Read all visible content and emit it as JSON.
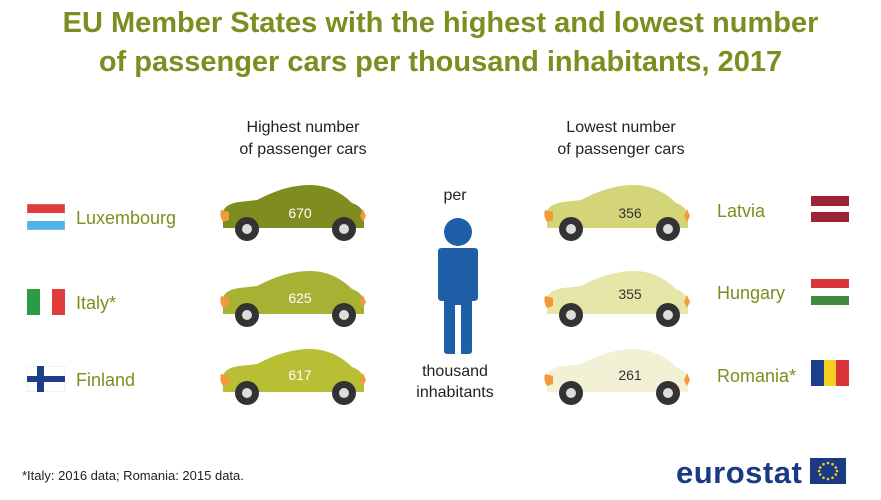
{
  "title": {
    "line1": "EU Member States with the highest and lowest number",
    "line2": "of passenger cars per thousand inhabitants, 2017"
  },
  "highest": {
    "header_line1": "Highest number",
    "header_line2": "of passenger cars",
    "rows": [
      {
        "country": "Luxembourg",
        "value": "670",
        "car_color": "#7f8c1f",
        "flag": "luxembourg"
      },
      {
        "country": "Italy*",
        "value": "625",
        "car_color": "#a7b234",
        "flag": "italy"
      },
      {
        "country": "Finland",
        "value": "617",
        "car_color": "#b8bf35",
        "flag": "finland"
      }
    ]
  },
  "lowest": {
    "header_line1": "Lowest number",
    "header_line2": "of passenger cars",
    "rows": [
      {
        "country": "Latvia",
        "value": "356",
        "car_color": "#d4d478",
        "flag": "latvia"
      },
      {
        "country": "Hungary",
        "value": "355",
        "car_color": "#e6e6a8",
        "flag": "hungary"
      },
      {
        "country": "Romania*",
        "value": "261",
        "car_color": "#f2f1d6",
        "flag": "romania"
      }
    ]
  },
  "center": {
    "per": "per",
    "thousand": "thousand",
    "inhabitants": "inhabitants",
    "person_icon": "person-icon",
    "person_color": "#1f5fa8"
  },
  "footnote": "*Italy: 2016 data; Romania: 2015 data.",
  "logo": {
    "text": "eurostat",
    "flag": "eu-flag-icon"
  }
}
